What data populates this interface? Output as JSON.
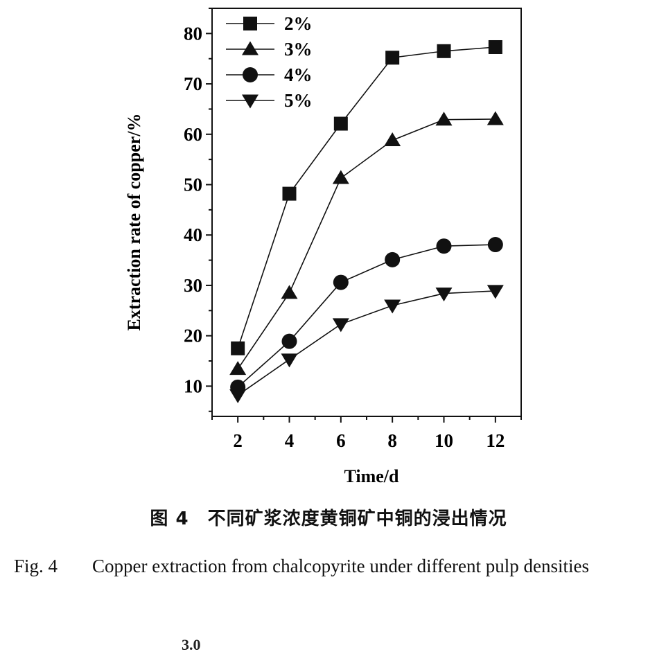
{
  "chart_data": {
    "type": "line",
    "title": "",
    "xlabel": "Time/d",
    "ylabel": "Extraction rate of copper/%",
    "xlim": [
      1.0,
      13.0
    ],
    "ylim": [
      4.0,
      85.0
    ],
    "xticks": [
      2,
      4,
      6,
      8,
      10,
      12
    ],
    "yticks": [
      10,
      20,
      30,
      40,
      50,
      60,
      70,
      80
    ],
    "legend_position": "top-left",
    "grid": false,
    "x": [
      2,
      4,
      6,
      8,
      10,
      12
    ],
    "series": [
      {
        "name": "2%",
        "marker": "square",
        "values": [
          17.5,
          48.2,
          62.1,
          75.2,
          76.5,
          77.3
        ]
      },
      {
        "name": "3%",
        "marker": "triangle-up",
        "values": [
          13.4,
          28.5,
          51.3,
          58.8,
          62.9,
          63.0
        ]
      },
      {
        "name": "4%",
        "marker": "circle",
        "values": [
          9.8,
          18.9,
          30.6,
          35.1,
          37.8,
          38.1
        ]
      },
      {
        "name": "5%",
        "marker": "triangle-down",
        "values": [
          8.2,
          15.3,
          22.3,
          26.0,
          28.4,
          28.9
        ]
      }
    ]
  },
  "caption": {
    "cn": "图 4　不同矿浆浓度黄铜矿中铜的浸出情况",
    "en_label": "Fig. 4",
    "en_text": "Copper extraction from chalcopyrite under different pulp densities"
  },
  "bottom_fragment": "3.0"
}
